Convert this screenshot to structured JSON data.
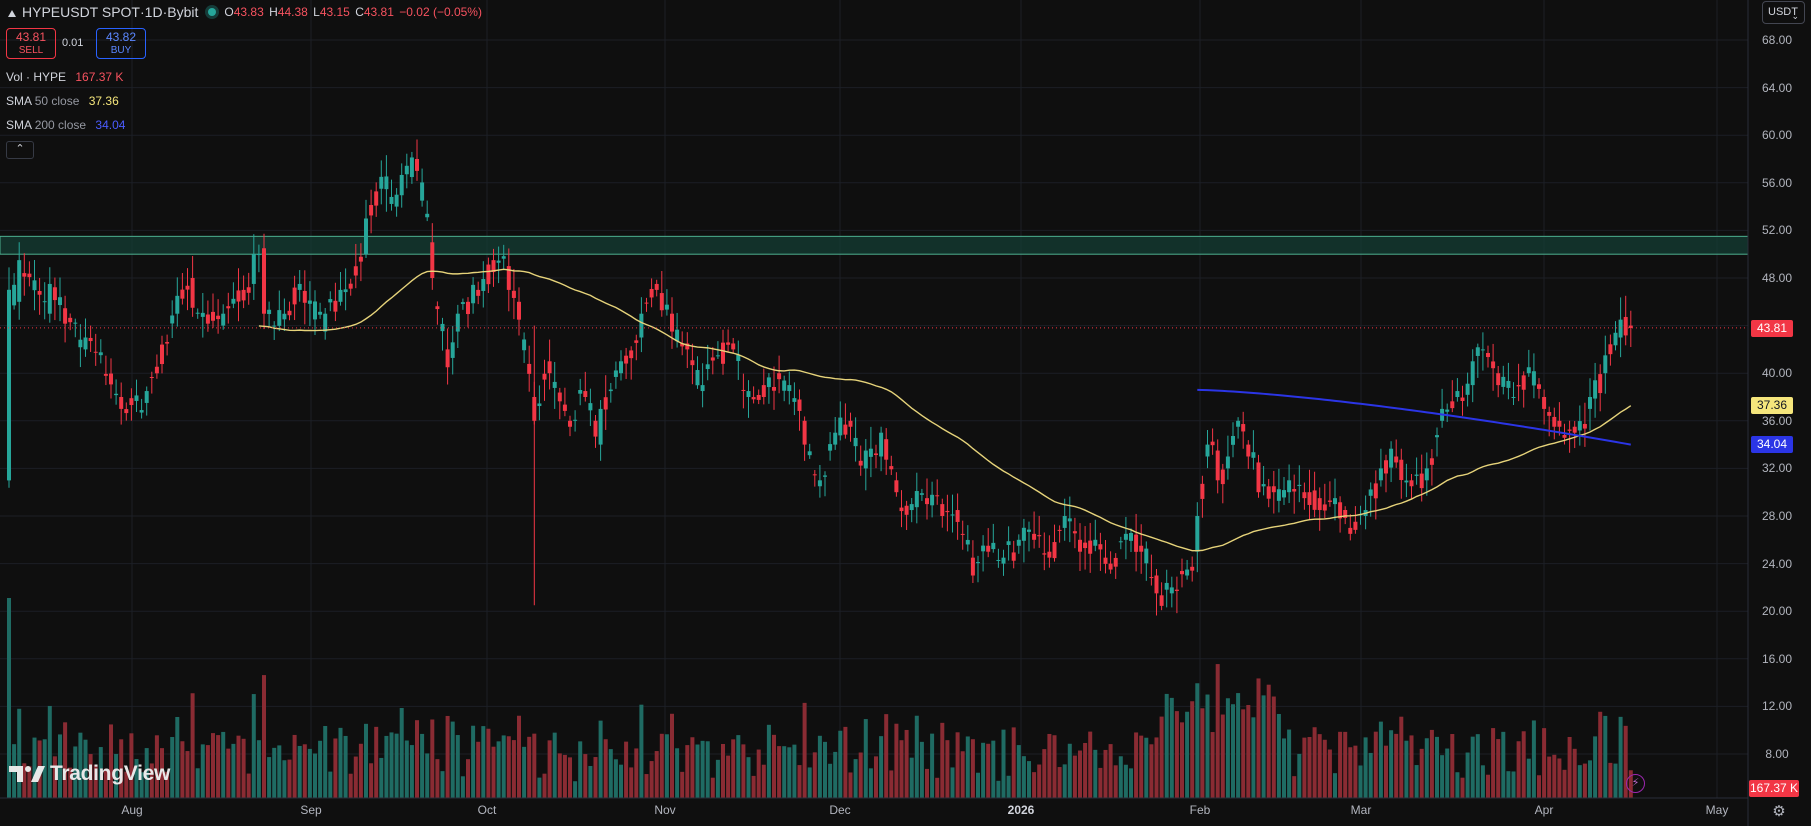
{
  "header": {
    "symbol": "HYPEUSDT SPOT",
    "interval": "1D",
    "exchange": "Bybit",
    "sep": " · ",
    "ohlc": {
      "o_label": "O",
      "o": "43.83",
      "h_label": "H",
      "h": "44.38",
      "l_label": "L",
      "l": "43.15",
      "c_label": "C",
      "c": "43.81",
      "change": "−0.02 (−0.05%)"
    }
  },
  "trade": {
    "sell_price": "43.81",
    "sell_label": "SELL",
    "spread": "0.01",
    "buy_price": "43.82",
    "buy_label": "BUY"
  },
  "indicators": [
    {
      "name": "Vol · HYPE",
      "params": "",
      "value": "167.37 K",
      "color": "#f7525f"
    },
    {
      "name": "SMA",
      "params": "50 close",
      "value": "37.36",
      "color": "#f5e67c"
    },
    {
      "name": "SMA",
      "params": "200 close",
      "value": "34.04",
      "color": "#2b35e6"
    }
  ],
  "currency": "USDT",
  "price_axis": [
    "68.00",
    "64.00",
    "60.00",
    "56.00",
    "52.00",
    "48.00",
    "44.00",
    "40.00",
    "36.00",
    "32.00",
    "28.00",
    "24.00",
    "20.00",
    "16.00",
    "12.00",
    "8.00"
  ],
  "time_axis": [
    {
      "label": "Aug",
      "bold": false
    },
    {
      "label": "Sep",
      "bold": false
    },
    {
      "label": "Oct",
      "bold": false
    },
    {
      "label": "Nov",
      "bold": false
    },
    {
      "label": "Dec",
      "bold": false
    },
    {
      "label": "2026",
      "bold": true
    },
    {
      "label": "Feb",
      "bold": false
    },
    {
      "label": "Mar",
      "bold": false
    },
    {
      "label": "Apr",
      "bold": false
    },
    {
      "label": "May",
      "bold": false
    }
  ],
  "price_labels": {
    "last": {
      "text": "43.81",
      "bg": "#f23645",
      "fg": "#ffffff"
    },
    "sma50": {
      "text": "37.36",
      "bg": "#f5e67c",
      "fg": "#131722"
    },
    "sma200": {
      "text": "34.04",
      "bg": "#2b35e6",
      "fg": "#ffffff"
    },
    "volume": {
      "text": "167.37 K",
      "bg": "#f23645",
      "fg": "#ffffff"
    }
  },
  "logo": "TradingView",
  "colors": {
    "up": "#26a69a",
    "down": "#f23645",
    "vol_up": "#1f6b63",
    "vol_down": "#8a2b33",
    "sma50": "#e6d37a",
    "sma200": "#2b35e6",
    "zone_fill": "#143d34",
    "zone_border": "#4caf8f",
    "grid": "#1c1f26",
    "background": "#0f0f0f"
  },
  "chart_data": {
    "type": "candlestick",
    "title": "HYPEUSDT SPOT · 1D · Bybit",
    "ylim": [
      6,
      70
    ],
    "resistance_zone": [
      50.0,
      51.5
    ],
    "last_price": 43.81,
    "sma_50": {
      "name": "SMA 50 close",
      "last": 37.36
    },
    "sma_200": {
      "name": "SMA 200 close",
      "last": 34.04
    },
    "anchors": [
      [
        0,
        31,
        47
      ],
      [
        2,
        46,
        49.5
      ],
      [
        8,
        45,
        47.5
      ],
      [
        15,
        42,
        43
      ],
      [
        22,
        38,
        37
      ],
      [
        27,
        37.5,
        38.5
      ],
      [
        33,
        45,
        46.5
      ],
      [
        36,
        48,
        45.5
      ],
      [
        42,
        44,
        45
      ],
      [
        48,
        47.5,
        50
      ],
      [
        50,
        50.5,
        45
      ],
      [
        52,
        44,
        44
      ],
      [
        57,
        47,
        47.5
      ],
      [
        62,
        43.5,
        45
      ],
      [
        65,
        46,
        47
      ],
      [
        70,
        50,
        53
      ],
      [
        73,
        55.5,
        56.5
      ],
      [
        76,
        54,
        55
      ],
      [
        80,
        58,
        57
      ],
      [
        83,
        51,
        48
      ],
      [
        86,
        42,
        40.5
      ],
      [
        88,
        43.5,
        45
      ],
      [
        92,
        47,
        46.5
      ],
      [
        95,
        49.5,
        48.5
      ],
      [
        98,
        49,
        47
      ],
      [
        100,
        46,
        44.5
      ],
      [
        103,
        38,
        36
      ],
      [
        106,
        41,
        40
      ],
      [
        110,
        36,
        35.5
      ],
      [
        113,
        38.5,
        38
      ],
      [
        116,
        34,
        37
      ],
      [
        120,
        40,
        41
      ],
      [
        124,
        43,
        45
      ],
      [
        127,
        47.5,
        47
      ],
      [
        130,
        45,
        43.5
      ],
      [
        133,
        42.5,
        42
      ],
      [
        136,
        38.5,
        39
      ],
      [
        139,
        41.5,
        41.5
      ],
      [
        142,
        42.5,
        42
      ],
      [
        145,
        38,
        38.5
      ],
      [
        148,
        39,
        38
      ],
      [
        151,
        40,
        39.5
      ],
      [
        153,
        38.5,
        39
      ],
      [
        156,
        36,
        34
      ],
      [
        159,
        30.5,
        31
      ],
      [
        162,
        34,
        35
      ],
      [
        165,
        36,
        35.5
      ],
      [
        168,
        32,
        33.5
      ],
      [
        171,
        33,
        35
      ],
      [
        174,
        31,
        30
      ],
      [
        177,
        28.5,
        29
      ],
      [
        180,
        29.5,
        29
      ],
      [
        183,
        29,
        28
      ],
      [
        186,
        28.5,
        27.5
      ],
      [
        189,
        24.5,
        23
      ],
      [
        192,
        25.5,
        25
      ],
      [
        195,
        24,
        24.5
      ],
      [
        198,
        25.5,
        26
      ],
      [
        201,
        26.5,
        26
      ],
      [
        204,
        25,
        24.5
      ],
      [
        207,
        27,
        28
      ],
      [
        210,
        26,
        25
      ],
      [
        213,
        25.5,
        26
      ],
      [
        216,
        24,
        23.5
      ],
      [
        219,
        26,
        26.5
      ],
      [
        222,
        25.5,
        25
      ],
      [
        225,
        23,
        21.5
      ],
      [
        228,
        21.5,
        22
      ],
      [
        231,
        23,
        23.5
      ],
      [
        233,
        25,
        28
      ],
      [
        235,
        33,
        34
      ],
      [
        237,
        33.5,
        31
      ],
      [
        239,
        32,
        33
      ],
      [
        241,
        35.5,
        36
      ],
      [
        243,
        34,
        33
      ],
      [
        245,
        32.5,
        30
      ],
      [
        248,
        30.5,
        30
      ],
      [
        251,
        30,
        31
      ],
      [
        254,
        30,
        29.5
      ],
      [
        257,
        29.5,
        28.5
      ],
      [
        260,
        29,
        29.5
      ],
      [
        263,
        27,
        26.5
      ],
      [
        266,
        28,
        28.5
      ],
      [
        269,
        31,
        32
      ],
      [
        272,
        33,
        32.5
      ],
      [
        275,
        31,
        30.5
      ],
      [
        278,
        31,
        32
      ],
      [
        281,
        36,
        37
      ],
      [
        284,
        38,
        38.5
      ],
      [
        287,
        39,
        41
      ],
      [
        289,
        42,
        42
      ],
      [
        292,
        40,
        39
      ],
      [
        295,
        38,
        38
      ],
      [
        298,
        40,
        40.5
      ],
      [
        301,
        38,
        37
      ],
      [
        304,
        36,
        35.5
      ],
      [
        307,
        35.5,
        35
      ],
      [
        310,
        37,
        38
      ],
      [
        313,
        40,
        41.5
      ],
      [
        316,
        43,
        44.5
      ],
      [
        318,
        44,
        43.8
      ]
    ]
  }
}
